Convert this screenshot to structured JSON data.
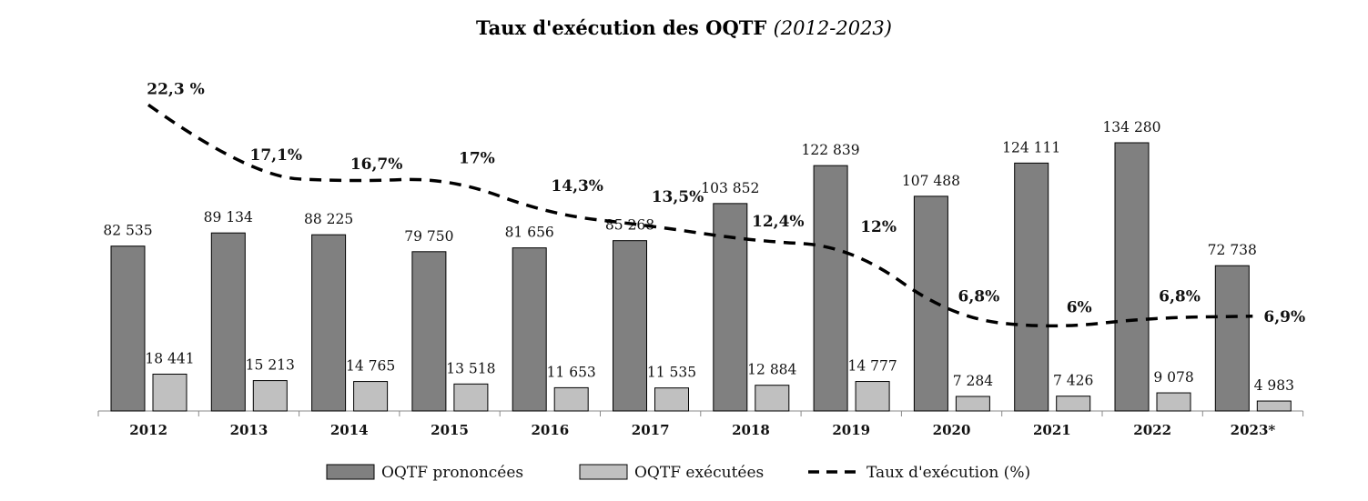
{
  "chart_data": {
    "type": "bar",
    "title": "Taux d'exécution des OQTF",
    "subtitle": "(2012-2023)",
    "categories": [
      "2012",
      "2013",
      "2014",
      "2015",
      "2016",
      "2017",
      "2018",
      "2019",
      "2020",
      "2021",
      "2022",
      "2023*"
    ],
    "series": [
      {
        "name": "OQTF prononcées",
        "type": "bar",
        "color": "#808080",
        "values": [
          82535,
          89134,
          88225,
          79750,
          81656,
          85268,
          103852,
          122839,
          107488,
          124111,
          134280,
          72738
        ],
        "labels": [
          "82 535",
          "89 134",
          "88 225",
          "79 750",
          "81 656",
          "85 268",
          "103 852",
          "122 839",
          "107 488",
          "124 111",
          "134 280",
          "72 738"
        ]
      },
      {
        "name": "OQTF exécutées",
        "type": "bar",
        "color": "#c0c0c0",
        "values": [
          18441,
          15213,
          14765,
          13518,
          11653,
          11535,
          12884,
          14777,
          7284,
          7426,
          9078,
          4983
        ],
        "labels": [
          "18 441",
          "15 213",
          "14 765",
          "13 518",
          "11 653",
          "11 535",
          "12 884",
          "14 777",
          "7 284",
          "7 426",
          "9 078",
          "4 983"
        ]
      },
      {
        "name": "Taux d'exécution (%)",
        "type": "line",
        "style": "dashed",
        "color": "#000000",
        "values": [
          22.3,
          17.1,
          16.7,
          17,
          14.3,
          13.5,
          12.4,
          12,
          6.8,
          6,
          6.8,
          6.9
        ],
        "labels": [
          "22,3 %",
          "17,1%",
          "16,7%",
          "17%",
          "14,3%",
          "13,5%",
          "12,4%",
          "12%",
          "6,8%",
          "6%",
          "6,8%",
          "6,9%"
        ]
      }
    ],
    "ylim_bars": [
      0,
      140000
    ],
    "ylim_rate": [
      0,
      24
    ],
    "grid": false,
    "legend_position": "bottom"
  }
}
